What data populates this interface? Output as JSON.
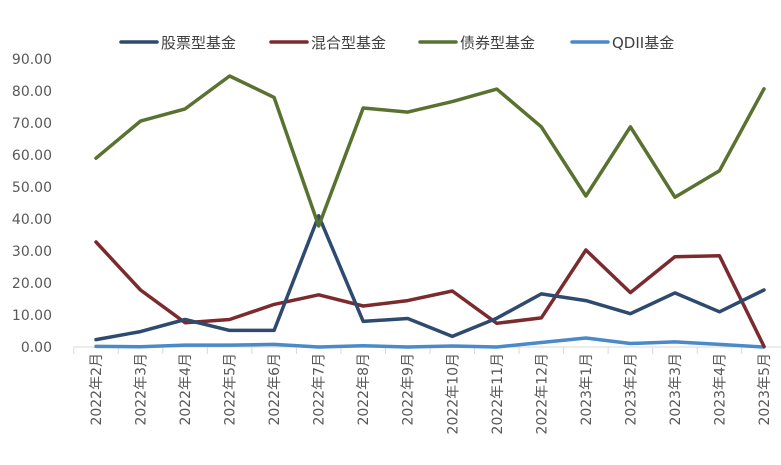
{
  "chart_data": {
    "type": "line",
    "title": "",
    "xlabel": "",
    "ylabel": "",
    "ylim": [
      0,
      90
    ],
    "yticks": [
      "0.00",
      "10.00",
      "20.00",
      "30.00",
      "40.00",
      "50.00",
      "60.00",
      "70.00",
      "80.00",
      "90.00"
    ],
    "grid": false,
    "legend_position": "top",
    "categories": [
      "2022年2月",
      "2022年3月",
      "2022年4月",
      "2022年5月",
      "2022年6月",
      "2022年7月",
      "2022年8月",
      "2022年9月",
      "2022年10月",
      "2022年11月",
      "2022年12月",
      "2023年1月",
      "2023年2月",
      "2023年3月",
      "2023年4月",
      "2023年5月"
    ],
    "series": [
      {
        "name": "股票型基金",
        "color": "#2e4a6f",
        "values": [
          2.3,
          4.8,
          8.6,
          5.2,
          5.2,
          41.0,
          8.0,
          8.9,
          3.3,
          9.0,
          16.6,
          14.5,
          10.4,
          16.9,
          11.0,
          17.8
        ]
      },
      {
        "name": "混合型基金",
        "color": "#7b2b2e",
        "values": [
          32.8,
          17.8,
          7.6,
          8.6,
          13.3,
          16.3,
          12.8,
          14.5,
          17.5,
          7.4,
          9.1,
          30.3,
          17.0,
          28.2,
          28.5,
          0.2
        ]
      },
      {
        "name": "债券型基金",
        "color": "#5a7230",
        "values": [
          59.0,
          70.6,
          74.4,
          84.7,
          78.0,
          37.8,
          74.7,
          73.4,
          76.7,
          80.6,
          68.8,
          47.2,
          68.8,
          46.8,
          55.1,
          80.7
        ]
      },
      {
        "name": "QDII基金",
        "color": "#4a8ac8",
        "values": [
          0.2,
          0.1,
          0.6,
          0.6,
          0.8,
          0.0,
          0.4,
          0.0,
          0.3,
          0.0,
          1.4,
          2.8,
          1.1,
          1.6,
          0.8,
          0.0
        ]
      }
    ]
  }
}
